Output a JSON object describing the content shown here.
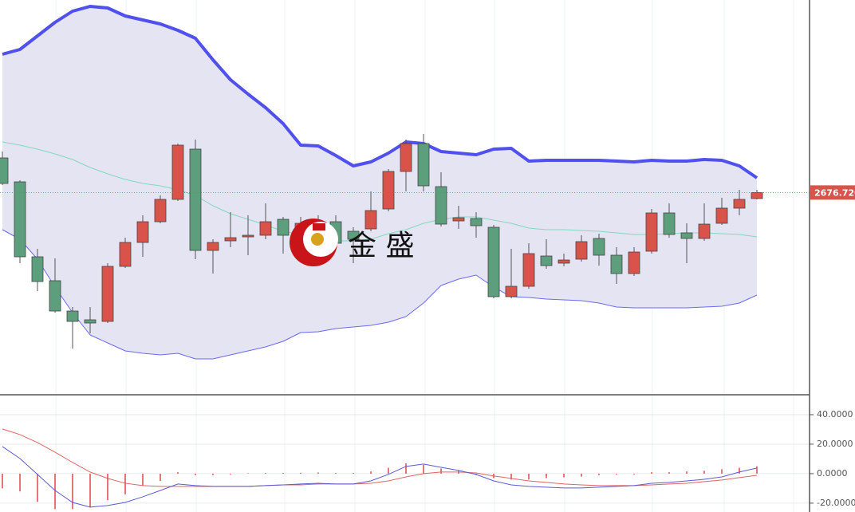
{
  "chart_data": [
    {
      "type": "candlestick",
      "open": [
        2685.4,
        2679.4,
        2660.6,
        2654.6,
        2647,
        2644.8,
        2644.4,
        2658.2,
        2664.2,
        2669.4,
        2675,
        2687.6,
        2662.2,
        2664.6,
        2665.6,
        2666,
        2670,
        2667,
        2667,
        2669.4,
        2667,
        2667.6,
        2672.6,
        2682,
        2689,
        2678.2,
        2669.6,
        2670.2,
        2668,
        2650.6,
        2653.2,
        2660.8,
        2659,
        2660,
        2665.2,
        2661,
        2656.4,
        2662,
        2671.6,
        2666.6,
        2665.2,
        2669,
        2672.8,
        2675.2
      ],
      "high": [
        2687,
        2679.8,
        2662.6,
        2660.2,
        2648,
        2648,
        2659,
        2665.4,
        2671,
        2676,
        2689,
        2690,
        2665,
        2671.8,
        2671,
        2674,
        2670.6,
        2670.6,
        2671,
        2671,
        2668,
        2677,
        2682.6,
        2690,
        2691.4,
        2681.8,
        2673.4,
        2671.8,
        2668.6,
        2662.6,
        2664,
        2665,
        2661.4,
        2666,
        2666.4,
        2663,
        2663,
        2672.6,
        2674,
        2669,
        2674,
        2675.4,
        2677.4,
        2677.4
      ],
      "low": [
        2678.6,
        2659,
        2652,
        2646.6,
        2637.6,
        2641.4,
        2644,
        2657.8,
        2660.6,
        2669,
        2674.6,
        2660,
        2656.4,
        2663,
        2661,
        2665,
        2661.4,
        2665,
        2666,
        2663.4,
        2659,
        2667,
        2672,
        2677,
        2677,
        2668.2,
        2667.6,
        2665.4,
        2650.2,
        2650.2,
        2652.6,
        2657.6,
        2658.2,
        2659.4,
        2658.4,
        2653.8,
        2655.8,
        2661.4,
        2665.4,
        2659,
        2664.6,
        2668.6,
        2671,
        2675
      ],
      "close": [
        2679,
        2660.6,
        2654.4,
        2647,
        2644.4,
        2644,
        2658.2,
        2664.2,
        2669.4,
        2675,
        2688.6,
        2662.2,
        2664.2,
        2665.4,
        2666,
        2669.4,
        2666,
        2669,
        2669.4,
        2664,
        2665,
        2672.2,
        2682,
        2689,
        2678.4,
        2668.8,
        2670.4,
        2668.4,
        2650.6,
        2653.2,
        2661.4,
        2658.4,
        2659.8,
        2664.4,
        2661,
        2656.4,
        2661.8,
        2671.6,
        2666.2,
        2665.2,
        2668.8,
        2672.8,
        2675,
        2676.7
      ],
      "up_color": "#d9534a",
      "down_color": "#5d9e7c",
      "bands": {
        "upper": [
          2711.4,
          2712.6,
          2716,
          2719.4,
          2722.2,
          2723.4,
          2723,
          2721,
          2720,
          2719,
          2717.4,
          2715.4,
          2710,
          2705,
          2701.4,
          2698,
          2694,
          2688.6,
          2688.4,
          2686,
          2683.4,
          2684.4,
          2686.6,
          2689.4,
          2689,
          2687,
          2686.6,
          2686.2,
          2687.6,
          2687.8,
          2684.6,
          2684.8,
          2684.8,
          2684.8,
          2684.8,
          2684.6,
          2684.4,
          2684.8,
          2684.6,
          2684.6,
          2685,
          2684.8,
          2683.4,
          2680.4
        ],
        "middle": [
          2689.4,
          2688.6,
          2687.6,
          2686.4,
          2685,
          2683,
          2681.4,
          2680,
          2679,
          2678.4,
          2677.4,
          2676,
          2673.4,
          2671.4,
          2670,
          2668.6,
          2667,
          2666.2,
          2665.4,
          2664.6,
          2664.6,
          2665,
          2666.4,
          2667.4,
          2669,
          2670,
          2670.6,
          2670.6,
          2669.8,
          2669,
          2667.8,
          2667.4,
          2667.4,
          2667.2,
          2667,
          2666.6,
          2666.2,
          2666.2,
          2666.4,
          2666.6,
          2666.6,
          2666.4,
          2666.2,
          2665.6
        ],
        "lower": [
          2667.4,
          2665,
          2660,
          2653,
          2646.6,
          2641,
          2639,
          2637,
          2636.4,
          2636,
          2636.4,
          2635,
          2635,
          2636,
          2637,
          2638,
          2639.4,
          2641.6,
          2641.8,
          2642.6,
          2643,
          2643.4,
          2644.2,
          2645.6,
          2649,
          2653.4,
          2655,
          2656,
          2653,
          2650.6,
          2650.4,
          2650,
          2649.8,
          2649.6,
          2649,
          2648,
          2647.8,
          2647.8,
          2647.8,
          2647.8,
          2648,
          2648.2,
          2649,
          2651
        ],
        "upper_color": "#5050ee",
        "middle_color": "#86d8bd",
        "lower_color": "#6a6af0",
        "fill": "#e4e4f2"
      },
      "ylim": [
        2626,
        2725
      ],
      "price_marker": {
        "value": 2676.72,
        "label": "2676.720"
      },
      "watermark": "金 盛"
    },
    {
      "type": "macd",
      "dif": [
        18.4,
        10.3,
        -0.5,
        -11.4,
        -19.5,
        -22.7,
        -21.6,
        -19.5,
        -15.7,
        -11.4,
        -7.0,
        -8.1,
        -8.6,
        -8.6,
        -8.6,
        -8.1,
        -7.6,
        -7.0,
        -6.5,
        -7.0,
        -7.0,
        -4.9,
        -0.5,
        4.9,
        6.5,
        4.3,
        2.2,
        -0.5,
        -4.9,
        -7.6,
        -8.6,
        -9.2,
        -9.7,
        -9.7,
        -9.2,
        -8.6,
        -8.1,
        -6.5,
        -5.9,
        -4.9,
        -3.8,
        -2.2,
        1.1,
        3.8
      ],
      "dea": [
        30.3,
        26.5,
        21.1,
        14.6,
        7.6,
        1.1,
        -3.2,
        -6.5,
        -8.1,
        -8.6,
        -8.6,
        -8.6,
        -8.6,
        -8.6,
        -8.6,
        -8.1,
        -7.6,
        -7.6,
        -7.0,
        -7.0,
        -7.0,
        -6.5,
        -4.9,
        -2.2,
        0,
        1.1,
        1.1,
        0.5,
        -1.6,
        -3.2,
        -4.9,
        -5.9,
        -7.0,
        -7.6,
        -8.1,
        -8.1,
        -8.1,
        -7.6,
        -7.0,
        -6.5,
        -5.4,
        -4.3,
        -2.7,
        -1.1
      ],
      "histogram": [
        -10,
        -12,
        -19,
        -24,
        -24,
        -23,
        -18,
        -14,
        -8,
        -5,
        1,
        -1,
        -1,
        -0.5,
        0.3,
        0.5,
        0.5,
        0.6,
        0.8,
        0.5,
        0.5,
        1.5,
        4,
        7,
        6,
        3.5,
        2,
        -1,
        -3,
        -4,
        -4,
        -3,
        -2.5,
        -2,
        -1,
        -0.5,
        -0.5,
        1,
        1,
        1.5,
        2,
        3,
        4,
        5
      ],
      "dif_color": "#5b5bd6",
      "dea_color": "#e06464",
      "histogram_color": "#e0474c",
      "ylim": [
        -26,
        53.5
      ],
      "yticks": [
        {
          "value": 40,
          "label": "40.0000"
        },
        {
          "value": 20,
          "label": "20.0000"
        },
        {
          "value": 0,
          "label": "0.0000"
        },
        {
          "value": -20,
          "label": "-20.0000"
        }
      ],
      "grid": true
    }
  ]
}
